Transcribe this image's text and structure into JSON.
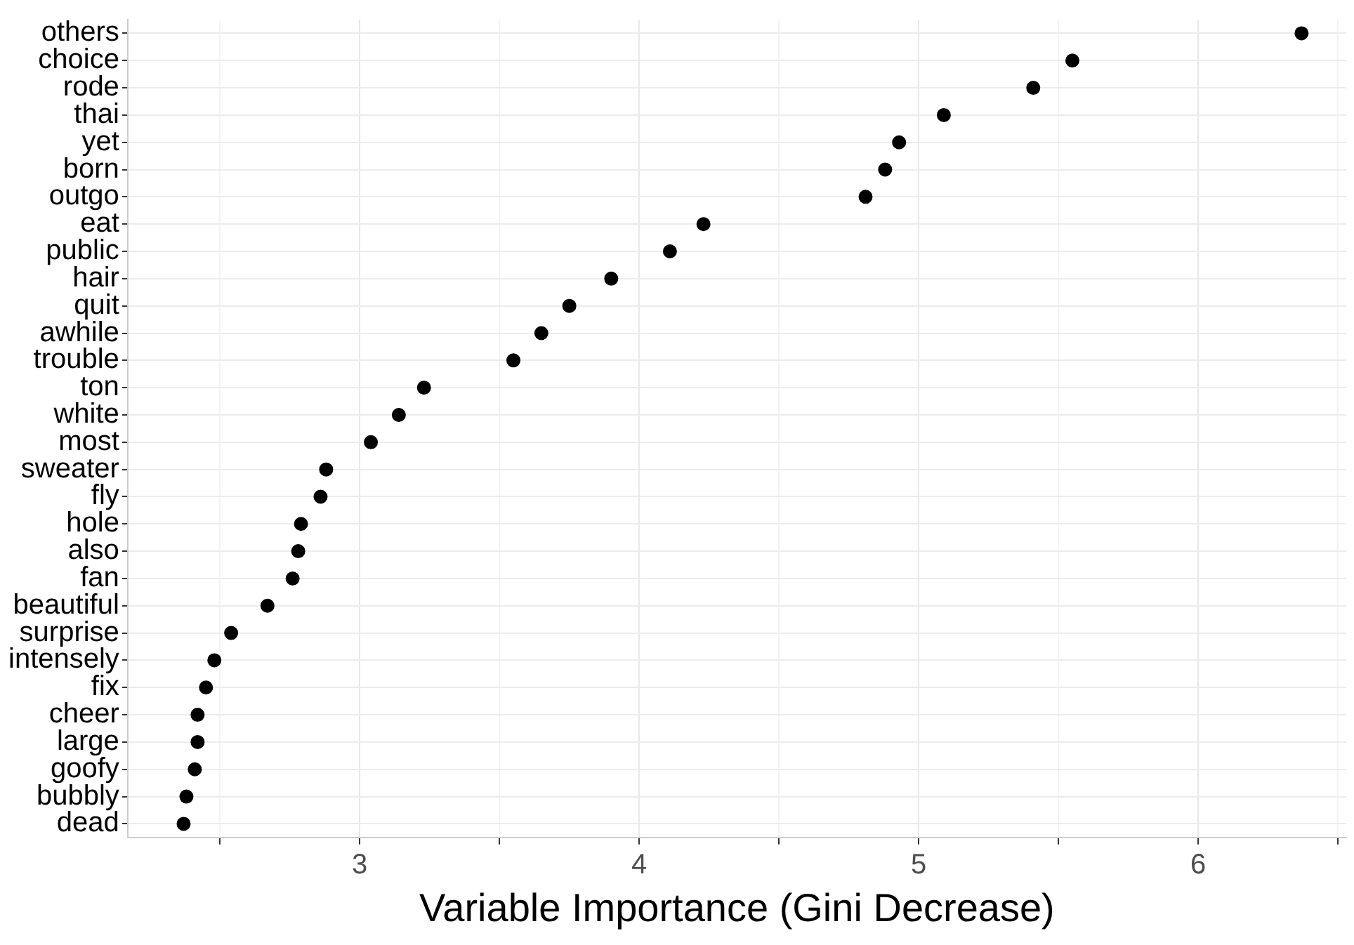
{
  "chart_data": {
    "type": "scatter",
    "xlabel": "Variable Importance (Gini Decrease)",
    "categories": [
      "others",
      "choice",
      "rode",
      "thai",
      "yet",
      "born",
      "outgo",
      "eat",
      "public",
      "hair",
      "quit",
      "awhile",
      "trouble",
      "ton",
      "white",
      "most",
      "sweater",
      "fly",
      "hole",
      "also",
      "fan",
      "beautiful",
      "surprise",
      "intensely",
      "fix",
      "cheer",
      "large",
      "goofy",
      "bubbly",
      "dead"
    ],
    "series": [
      {
        "color": "#000000",
        "values": [
          6.37,
          5.55,
          5.41,
          5.09,
          4.93,
          4.88,
          4.81,
          4.23,
          4.11,
          3.9,
          3.75,
          3.65,
          3.55,
          3.23,
          3.14,
          3.04,
          2.88,
          2.86,
          2.79,
          2.78,
          2.76,
          2.67,
          2.54,
          2.48,
          2.45,
          2.42,
          2.42,
          2.41,
          2.38,
          2.37
        ]
      }
    ],
    "xlim": [
      2.17,
      6.53
    ],
    "xticks": [
      {
        "value": 2.5,
        "label": null
      },
      3,
      {
        "value": 3.5,
        "label": null
      },
      4,
      {
        "value": 4.5,
        "label": null
      },
      5,
      {
        "value": 5.5,
        "label": null
      },
      6,
      {
        "value": 6.5,
        "label": null
      }
    ],
    "orientation": "horizontal",
    "grid": true,
    "marker": "circle",
    "legend": false
  }
}
